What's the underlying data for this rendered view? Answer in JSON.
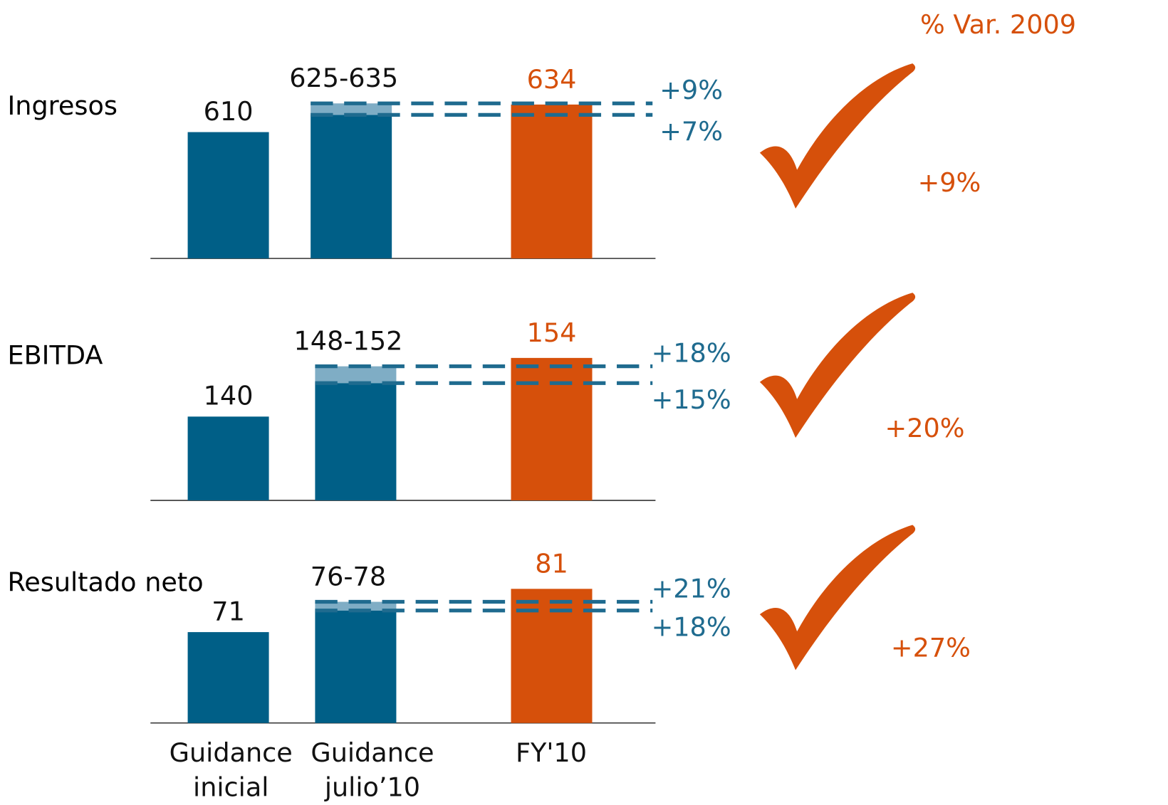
{
  "header": "% Var. 2009",
  "categories": [
    [
      "Guidance",
      "inicial"
    ],
    [
      "Guidance",
      "julio’10"
    ],
    [
      "FY'10"
    ]
  ],
  "colors": {
    "initial": "#005f87",
    "guidance": "#005f87",
    "guidance_range": "#7fadc5",
    "actual": "#d6500b",
    "dash": "#1f6b8f",
    "growth": "#d6500b"
  },
  "chart_data": [
    {
      "type": "bar",
      "title": "Ingresos",
      "initial": 610,
      "guidance_low": 625,
      "guidance_high": 635,
      "guidance_label": "625-635",
      "actual": 634,
      "guidance_growth_high": {
        "value": 9,
        "label": "+9%"
      },
      "guidance_growth_low": {
        "value": 7,
        "label": "+7%"
      },
      "growth": {
        "value": 9,
        "label": "+9%"
      },
      "ylim": [
        500,
        640
      ]
    },
    {
      "type": "bar",
      "title": "EBITDA",
      "initial": 140,
      "guidance_low": 148,
      "guidance_high": 152,
      "guidance_label": "148-152",
      "actual": 154,
      "guidance_growth_high": {
        "value": 18,
        "label": "+18%"
      },
      "guidance_growth_low": {
        "value": 15,
        "label": "+15%"
      },
      "growth": {
        "value": 20,
        "label": "+20%"
      },
      "ylim": [
        120,
        155
      ]
    },
    {
      "type": "bar",
      "title": "Resultado neto",
      "initial": 71,
      "guidance_low": 76,
      "guidance_high": 78,
      "guidance_label": "76-78",
      "actual": 81,
      "guidance_growth_high": {
        "value": 21,
        "label": "+21%"
      },
      "guidance_growth_low": {
        "value": 18,
        "label": "+18%"
      },
      "growth": {
        "value": 27,
        "label": "+27%"
      },
      "ylim": [
        50,
        82
      ]
    }
  ]
}
